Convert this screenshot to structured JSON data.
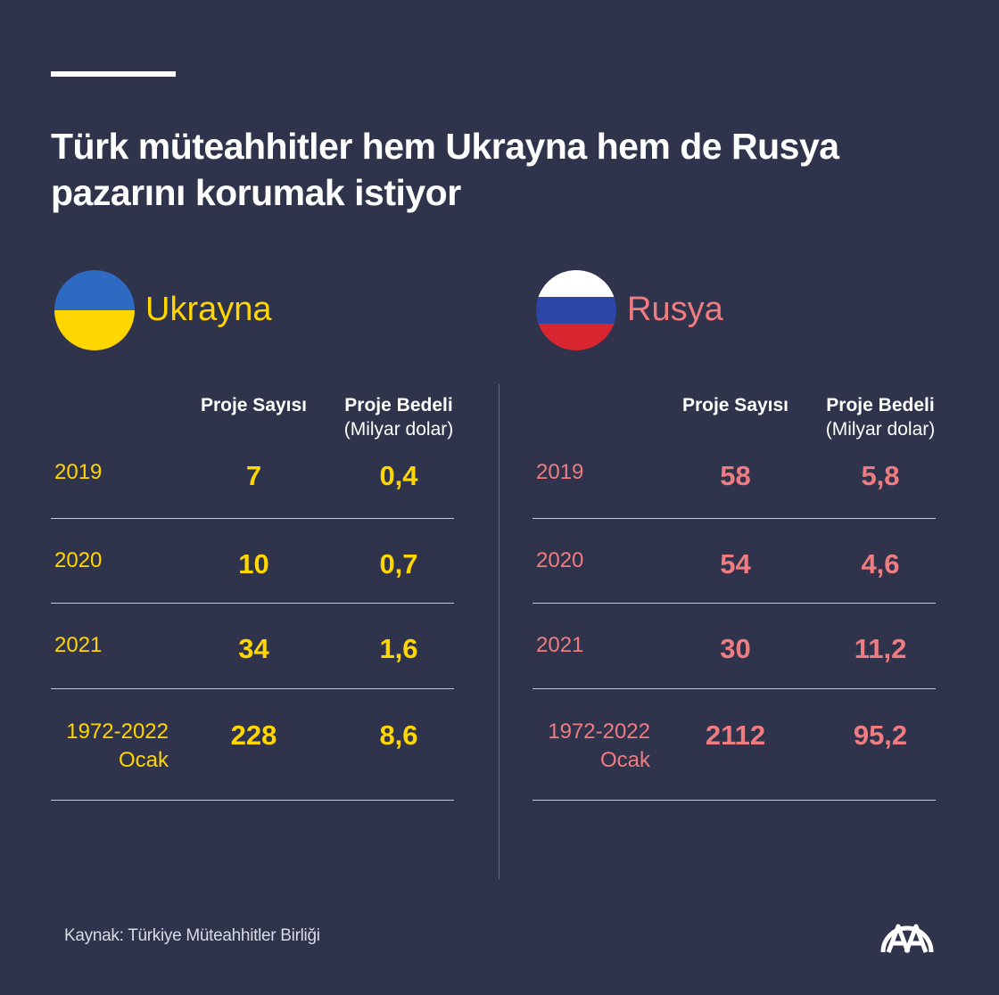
{
  "header": {
    "title_line1": "Türk müteahhitler hem Ukrayna hem de Rusya",
    "title_line2": "pazarını korumak istiyor"
  },
  "colors": {
    "background": "#2f334b",
    "ukraine_accent": "#ffd600",
    "russia_accent": "#ef7c80"
  },
  "ukraine": {
    "name": "Ukrayna",
    "flag_icon": "ukraine-flag-icon",
    "col1": "Proje Sayısı",
    "col2": "Proje Bedeli",
    "col2_unit": "(Milyar dolar)",
    "rows": [
      {
        "year": "2019",
        "projects": "7",
        "value": "0,4"
      },
      {
        "year": "2020",
        "projects": "10",
        "value": "0,7"
      },
      {
        "year": "2021",
        "projects": "34",
        "value": "1,6"
      },
      {
        "year": "1972-2022",
        "year_sub": "Ocak",
        "projects": "228",
        "value": "8,6"
      }
    ]
  },
  "russia": {
    "name": "Rusya",
    "flag_icon": "russia-flag-icon",
    "col1": "Proje Sayısı",
    "col2": "Proje Bedeli",
    "col2_unit": "(Milyar dolar)",
    "rows": [
      {
        "year": "2019",
        "projects": "58",
        "value": "5,8"
      },
      {
        "year": "2020",
        "projects": "54",
        "value": "4,6"
      },
      {
        "year": "2021",
        "projects": "30",
        "value": "11,2"
      },
      {
        "year": "1972-2022",
        "year_sub": "Ocak",
        "projects": "2112",
        "value": "95,2"
      }
    ]
  },
  "footer": {
    "source": "Kaynak: Türkiye Müteahhitler Birliği",
    "logo_icon": "aa-logo-icon"
  }
}
